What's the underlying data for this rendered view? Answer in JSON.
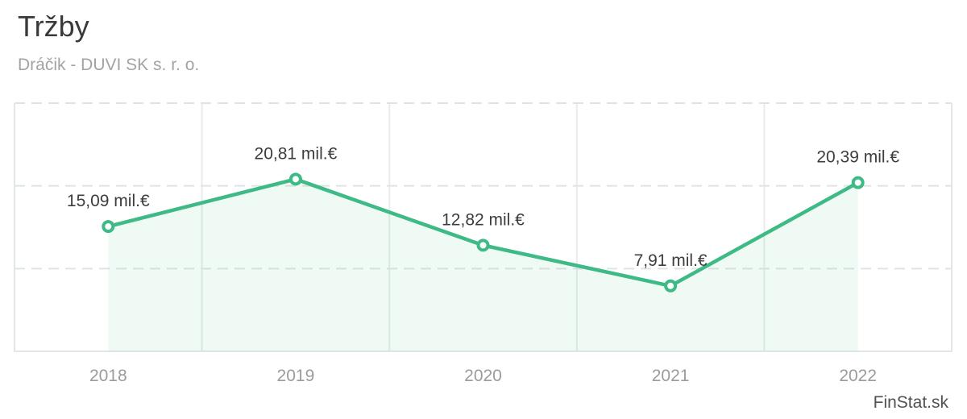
{
  "header": {
    "title": "Tržby",
    "subtitle": "Dráčik - DUVI SK s. r. o."
  },
  "footer": {
    "watermark": "FinStat.sk"
  },
  "chart_data": {
    "type": "line",
    "title": "Tržby",
    "subtitle": "Dráčik - DUVI SK s. r. o.",
    "categories": [
      "2018",
      "2019",
      "2020",
      "2021",
      "2022"
    ],
    "values": [
      15.09,
      20.81,
      12.82,
      7.91,
      20.39
    ],
    "data_labels": [
      "15,09 mil.€",
      "20,81 mil.€",
      "12,82 mil.€",
      "7,91 mil.€",
      "20,39 mil.€"
    ],
    "unit": "mil.€",
    "xlabel": "",
    "ylabel": "",
    "ylim": [
      0,
      30
    ],
    "gridline_values": [
      10,
      20,
      30
    ],
    "grid": "horizontal-dashed, vertical column separators, no y-axis tick labels",
    "legend": "none",
    "area_fill_between": [
      "2018",
      "2022"
    ]
  },
  "colors": {
    "line": "#3dba85",
    "marker_fill": "#ffffff",
    "area": "rgba(61,185,133,0.08)",
    "grid_dashed": "#e0e3e5",
    "grid_vertical": "#e8eceb",
    "plot_border": "#e1e6e9",
    "title_text": "#3a3a3a",
    "subtitle_text": "#a3a3a3",
    "axis_label_text": "#9b9b9b",
    "data_label_text": "#3d3d3d",
    "watermark_text": "#515151"
  }
}
